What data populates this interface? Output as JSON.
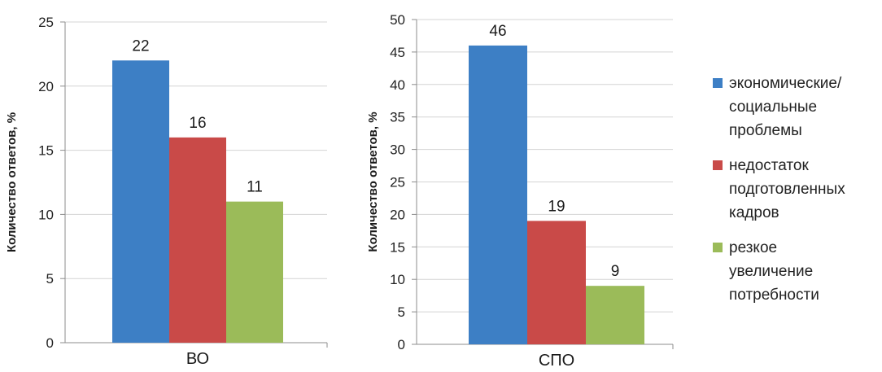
{
  "colors": {
    "series": [
      "#3d7fc5",
      "#c94a48",
      "#9bbb59"
    ],
    "axis": "#8c8c8c",
    "grid": "#d4d4d4"
  },
  "legend": {
    "items": [
      {
        "lines": [
          "экономические/",
          "социальные",
          "проблемы"
        ]
      },
      {
        "lines": [
          "недостаток",
          "подготовленных",
          "кадров"
        ]
      },
      {
        "lines": [
          "резкое",
          "увеличение",
          "потребности"
        ]
      }
    ]
  },
  "chart_data": [
    {
      "type": "bar",
      "categories": [
        "ВО"
      ],
      "ylabel": "Количество ответов, %",
      "ylim": [
        0,
        25
      ],
      "yticks": [
        0,
        5,
        10,
        15,
        20,
        25
      ],
      "grid": true,
      "legend": "right",
      "series": [
        {
          "name": "экономические/ социальные проблемы",
          "values": [
            22
          ],
          "label": "22"
        },
        {
          "name": "недостаток подготовленных кадров",
          "values": [
            16
          ],
          "label": "16"
        },
        {
          "name": "резкое увеличение потребности",
          "values": [
            11
          ],
          "label": "11"
        }
      ]
    },
    {
      "type": "bar",
      "categories": [
        "СПО"
      ],
      "ylabel": "Количество ответов, %",
      "ylim": [
        0,
        50
      ],
      "yticks": [
        0,
        5,
        10,
        15,
        20,
        25,
        30,
        35,
        40,
        45,
        50
      ],
      "grid": true,
      "legend": "right",
      "series": [
        {
          "name": "экономические/ социальные проблемы",
          "values": [
            46
          ],
          "label": "46"
        },
        {
          "name": "недостаток подготовленных кадров",
          "values": [
            19
          ],
          "label": "19"
        },
        {
          "name": "резкое увеличение потребности",
          "values": [
            9
          ],
          "label": "9"
        }
      ]
    }
  ]
}
